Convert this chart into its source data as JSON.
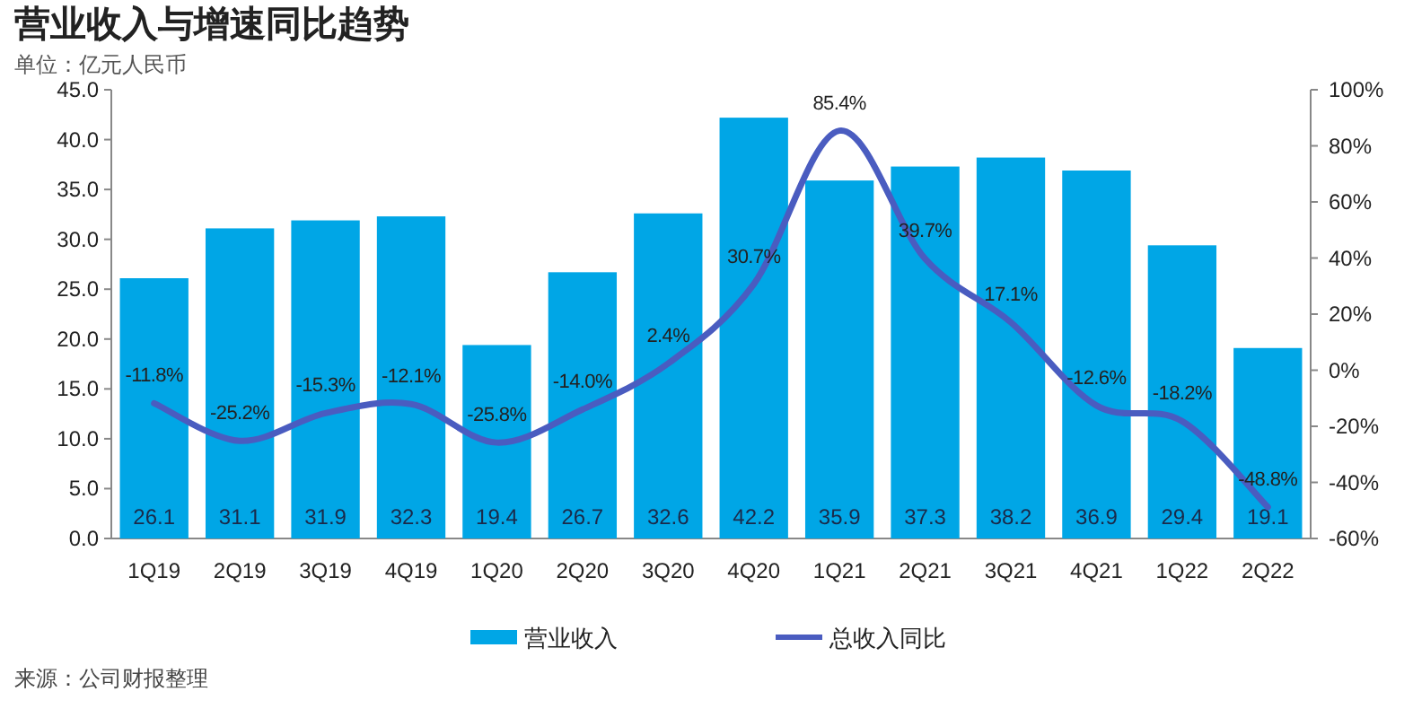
{
  "chart_data": {
    "type": "bar",
    "title": "营业收入与增速同比趋势",
    "subtitle": "单位：亿元人民币",
    "categories": [
      "1Q19",
      "2Q19",
      "3Q19",
      "4Q19",
      "1Q20",
      "2Q20",
      "3Q20",
      "4Q20",
      "1Q21",
      "2Q21",
      "3Q21",
      "4Q21",
      "1Q22",
      "2Q22"
    ],
    "series": [
      {
        "name": "营业收入",
        "color": "#00a6e6",
        "values": [
          26.1,
          31.1,
          31.9,
          32.3,
          19.4,
          26.7,
          32.6,
          42.2,
          35.9,
          37.3,
          38.2,
          36.9,
          29.4,
          19.1
        ],
        "value_labels": [
          "26.1",
          "31.1",
          "31.9",
          "32.3",
          "19.4",
          "26.7",
          "32.6",
          "42.2",
          "35.9",
          "37.3",
          "38.2",
          "36.9",
          "29.4",
          "19.1"
        ]
      },
      {
        "name": "总收入同比",
        "type": "line",
        "axis": "y2",
        "color": "#4a5cc0",
        "values": [
          -11.8,
          -25.2,
          -15.3,
          -12.1,
          -25.8,
          -14.0,
          2.4,
          30.7,
          85.4,
          39.7,
          17.1,
          -12.6,
          -18.2,
          -48.8
        ],
        "value_labels": [
          "-11.8%",
          "-25.2%",
          "-15.3%",
          "-12.1%",
          "-25.8%",
          "-14.0%",
          "2.4%",
          "30.7%",
          "85.4%",
          "39.7%",
          "17.1%",
          "-12.6%",
          "-18.2%",
          "-48.8%"
        ]
      }
    ],
    "ylim": [
      0,
      45
    ],
    "yticks": [
      {
        "value": 0,
        "label": "0.0"
      },
      {
        "value": 5,
        "label": "5.0"
      },
      {
        "value": 10,
        "label": "10.0"
      },
      {
        "value": 15,
        "label": "15.0"
      },
      {
        "value": 20,
        "label": "20.0"
      },
      {
        "value": 25,
        "label": "25.0"
      },
      {
        "value": 30,
        "label": "30.0"
      },
      {
        "value": 35,
        "label": "35.0"
      },
      {
        "value": 40,
        "label": "40.0"
      },
      {
        "value": 45,
        "label": "45.0"
      }
    ],
    "y2lim": [
      -60,
      100
    ],
    "y2ticks": [
      {
        "value": -60,
        "label": "-60%"
      },
      {
        "value": -40,
        "label": "-40%"
      },
      {
        "value": -20,
        "label": "-20%"
      },
      {
        "value": 0,
        "label": "0%"
      },
      {
        "value": 20,
        "label": "20%"
      },
      {
        "value": 40,
        "label": "40%"
      },
      {
        "value": 60,
        "label": "60%"
      },
      {
        "value": 80,
        "label": "80%"
      },
      {
        "value": 100,
        "label": "100%"
      }
    ],
    "legend": "bottom",
    "grid": false,
    "marker": "none",
    "line_style": "solid",
    "annotations": [
      "来源：公司财报整理"
    ]
  }
}
